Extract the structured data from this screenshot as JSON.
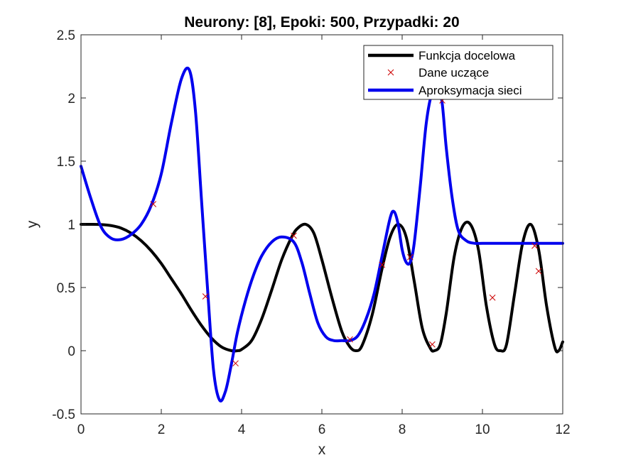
{
  "chart_data": {
    "type": "line",
    "title": "Neurony: [8], Epoki: 500, Przypadki: 20",
    "xlabel": "x",
    "ylabel": "y",
    "xlim": [
      0,
      12
    ],
    "ylim": [
      -0.5,
      2.5
    ],
    "xticks": [
      0,
      2,
      4,
      6,
      8,
      10,
      12
    ],
    "yticks": [
      -0.5,
      0,
      0.5,
      1,
      1.5,
      2,
      2.5
    ],
    "xtick_labels": [
      "0",
      "2",
      "4",
      "6",
      "8",
      "10",
      "12"
    ],
    "ytick_labels": [
      "-0.5",
      "0",
      "0.5",
      "1",
      "1.5",
      "2",
      "2.5"
    ],
    "grid": false,
    "legend_position": "top-right",
    "series": [
      {
        "name": "Funkcja docelowa",
        "kind": "line",
        "color": "#000000",
        "x": [
          0,
          0.25,
          0.5,
          0.75,
          1.0,
          1.25,
          1.5,
          1.75,
          2.0,
          2.25,
          2.5,
          2.75,
          3.0,
          3.25,
          3.5,
          3.75,
          3.9,
          4.0,
          4.25,
          4.5,
          4.75,
          5.0,
          5.25,
          5.4,
          5.6,
          5.8,
          6.0,
          6.25,
          6.5,
          6.7,
          6.85,
          7.0,
          7.25,
          7.5,
          7.7,
          7.9,
          8.1,
          8.3,
          8.5,
          8.7,
          8.8,
          8.95,
          9.1,
          9.3,
          9.5,
          9.7,
          9.9,
          10.1,
          10.3,
          10.45,
          10.6,
          10.8,
          11.0,
          11.2,
          11.4,
          11.6,
          11.8,
          11.9,
          12.0
        ],
        "y": [
          1.0,
          1.0,
          0.998,
          0.99,
          0.97,
          0.93,
          0.87,
          0.79,
          0.69,
          0.57,
          0.45,
          0.32,
          0.2,
          0.1,
          0.03,
          0.0,
          0.0,
          0.01,
          0.08,
          0.25,
          0.48,
          0.72,
          0.9,
          0.97,
          1.0,
          0.93,
          0.72,
          0.42,
          0.15,
          0.03,
          0.0,
          0.04,
          0.28,
          0.65,
          0.9,
          1.0,
          0.9,
          0.55,
          0.18,
          0.02,
          0.0,
          0.05,
          0.3,
          0.75,
          0.98,
          1.0,
          0.8,
          0.35,
          0.05,
          0.0,
          0.05,
          0.45,
          0.85,
          1.0,
          0.8,
          0.35,
          0.03,
          0.0,
          0.07
        ]
      },
      {
        "name": "Dane uczące",
        "kind": "scatter",
        "marker": "x",
        "color": "#cc0000",
        "x": [
          1.8,
          3.1,
          3.85,
          5.3,
          6.7,
          7.5,
          8.2,
          8.75,
          9.0,
          10.25,
          11.3,
          11.4
        ],
        "y": [
          1.16,
          0.43,
          -0.1,
          0.91,
          0.09,
          0.68,
          0.74,
          0.05,
          1.98,
          0.42,
          0.83,
          0.63
        ]
      },
      {
        "name": "Aproksymacja sieci",
        "kind": "line",
        "color": "#0000ee",
        "x": [
          0,
          0.25,
          0.5,
          0.75,
          1.0,
          1.25,
          1.5,
          1.75,
          2.0,
          2.25,
          2.5,
          2.7,
          2.85,
          3.0,
          3.15,
          3.3,
          3.45,
          3.6,
          3.75,
          3.9,
          4.1,
          4.3,
          4.5,
          4.75,
          5.0,
          5.3,
          5.5,
          5.7,
          5.9,
          6.1,
          6.3,
          6.5,
          6.7,
          6.9,
          7.1,
          7.3,
          7.5,
          7.7,
          7.8,
          7.9,
          8.0,
          8.1,
          8.2,
          8.3,
          8.45,
          8.6,
          8.75,
          8.9,
          9.0,
          9.1,
          9.25,
          9.4,
          9.6,
          9.8,
          10.0,
          10.3,
          10.6,
          11.0,
          11.5,
          12.0
        ],
        "y": [
          1.46,
          1.2,
          0.98,
          0.89,
          0.88,
          0.92,
          1.0,
          1.15,
          1.4,
          1.8,
          2.15,
          2.22,
          1.9,
          1.2,
          0.5,
          -0.15,
          -0.39,
          -0.32,
          -0.1,
          0.15,
          0.4,
          0.6,
          0.75,
          0.86,
          0.9,
          0.86,
          0.7,
          0.45,
          0.22,
          0.11,
          0.08,
          0.08,
          0.08,
          0.12,
          0.25,
          0.45,
          0.75,
          1.05,
          1.1,
          1.0,
          0.8,
          0.7,
          0.7,
          0.85,
          1.3,
          1.8,
          2.05,
          2.1,
          1.95,
          1.6,
          1.2,
          0.95,
          0.87,
          0.85,
          0.85,
          0.85,
          0.85,
          0.85,
          0.85,
          0.85
        ]
      }
    ]
  }
}
